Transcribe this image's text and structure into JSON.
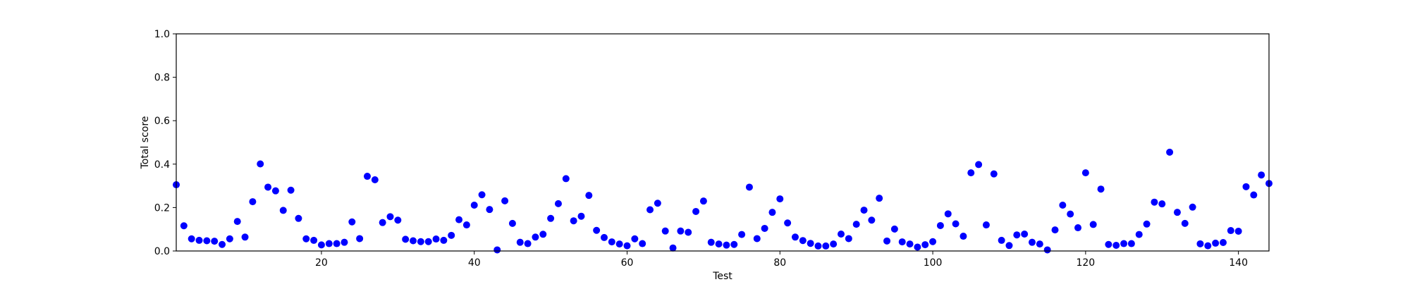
{
  "chart_data": {
    "type": "scatter",
    "title": "",
    "xlabel": "Test",
    "ylabel": "Total score",
    "xlim": [
      1,
      144
    ],
    "ylim": [
      0,
      1.0
    ],
    "xticks": [
      20,
      40,
      60,
      80,
      100,
      120,
      140
    ],
    "yticks": [
      0.0,
      0.2,
      0.4,
      0.6,
      0.8,
      1.0
    ],
    "xtick_labels": [
      "20",
      "40",
      "60",
      "80",
      "100",
      "120",
      "140"
    ],
    "ytick_labels": [
      "0.0",
      "0.2",
      "0.4",
      "0.6",
      "0.8",
      "1.0"
    ],
    "grid": false,
    "marker_color": "#0000ff",
    "series": [
      {
        "x": [
          1,
          2,
          3,
          4,
          5,
          6,
          7,
          8,
          9,
          10,
          11,
          12,
          13,
          14,
          15,
          16,
          17,
          18,
          19,
          20,
          21,
          22,
          23,
          24,
          25,
          26,
          27,
          28,
          29,
          30,
          31,
          32,
          33,
          34,
          35,
          36,
          37,
          38,
          39,
          40,
          41,
          42,
          43,
          44,
          45,
          46,
          47,
          48,
          49,
          50,
          51,
          52,
          53,
          54,
          55,
          56,
          57,
          58,
          59,
          60,
          61,
          62,
          63,
          64,
          65,
          66,
          67,
          68,
          69,
          70,
          71,
          72,
          73,
          74,
          75,
          76,
          77,
          78,
          79,
          80,
          81,
          82,
          83,
          84,
          85,
          86,
          87,
          88,
          89,
          90,
          91,
          92,
          93,
          94,
          95,
          96,
          97,
          98,
          99,
          100,
          101,
          102,
          103,
          104,
          105,
          106,
          107,
          108,
          109,
          110,
          111,
          112,
          113,
          114,
          115,
          116,
          117,
          118,
          119,
          120,
          121,
          122,
          123,
          124,
          125,
          126,
          127,
          128,
          129,
          130,
          131,
          132,
          133,
          134,
          135,
          136,
          137,
          138,
          139,
          140,
          141,
          142,
          143,
          144
        ],
        "y": [
          0.305,
          0.116,
          0.056,
          0.049,
          0.047,
          0.045,
          0.03,
          0.056,
          0.136,
          0.064,
          0.227,
          0.401,
          0.294,
          0.277,
          0.187,
          0.28,
          0.15,
          0.056,
          0.049,
          0.028,
          0.034,
          0.034,
          0.04,
          0.134,
          0.057,
          0.344,
          0.328,
          0.131,
          0.158,
          0.142,
          0.054,
          0.047,
          0.043,
          0.043,
          0.055,
          0.049,
          0.072,
          0.144,
          0.12,
          0.211,
          0.259,
          0.191,
          0.005,
          0.231,
          0.127,
          0.04,
          0.034,
          0.064,
          0.077,
          0.15,
          0.218,
          0.333,
          0.139,
          0.16,
          0.256,
          0.095,
          0.062,
          0.042,
          0.032,
          0.024,
          0.056,
          0.034,
          0.19,
          0.22,
          0.092,
          0.014,
          0.092,
          0.086,
          0.182,
          0.23,
          0.04,
          0.032,
          0.027,
          0.03,
          0.076,
          0.294,
          0.057,
          0.104,
          0.178,
          0.24,
          0.129,
          0.064,
          0.048,
          0.035,
          0.023,
          0.023,
          0.032,
          0.078,
          0.057,
          0.123,
          0.188,
          0.142,
          0.243,
          0.046,
          0.101,
          0.042,
          0.032,
          0.018,
          0.029,
          0.043,
          0.117,
          0.171,
          0.125,
          0.068,
          0.36,
          0.398,
          0.12,
          0.355,
          0.049,
          0.025,
          0.074,
          0.078,
          0.04,
          0.032,
          0.005,
          0.097,
          0.211,
          0.17,
          0.107,
          0.36,
          0.122,
          0.285,
          0.03,
          0.026,
          0.034,
          0.034,
          0.076,
          0.124,
          0.225,
          0.217,
          0.455,
          0.178,
          0.127,
          0.202,
          0.033,
          0.024,
          0.036,
          0.039,
          0.094,
          0.091,
          0.296,
          0.258,
          0.35,
          0.311
        ]
      }
    ]
  }
}
